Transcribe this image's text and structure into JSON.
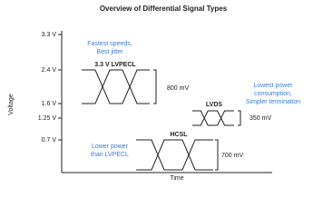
{
  "title": "Overview of Differential Signal Types",
  "y_axis": {
    "label": "Voltage",
    "ticks": [
      "3.3 V",
      "2.4 V",
      "1.6 V",
      "1.25 V",
      "0.7 V"
    ]
  },
  "x_axis": {
    "label": "Time"
  },
  "signals": [
    {
      "name": "3.3 V LVPECL",
      "swing": "800 mV",
      "note": [
        "Fastest speeds,",
        "Best jitter"
      ]
    },
    {
      "name": "LVDS",
      "swing": "350 mV",
      "note": [
        "Lowest power",
        "consumption,",
        "Simpler termination"
      ]
    },
    {
      "name": "HCSL",
      "swing": "700 mV",
      "note": [
        "Lower power",
        "than LVPECL"
      ]
    }
  ]
}
